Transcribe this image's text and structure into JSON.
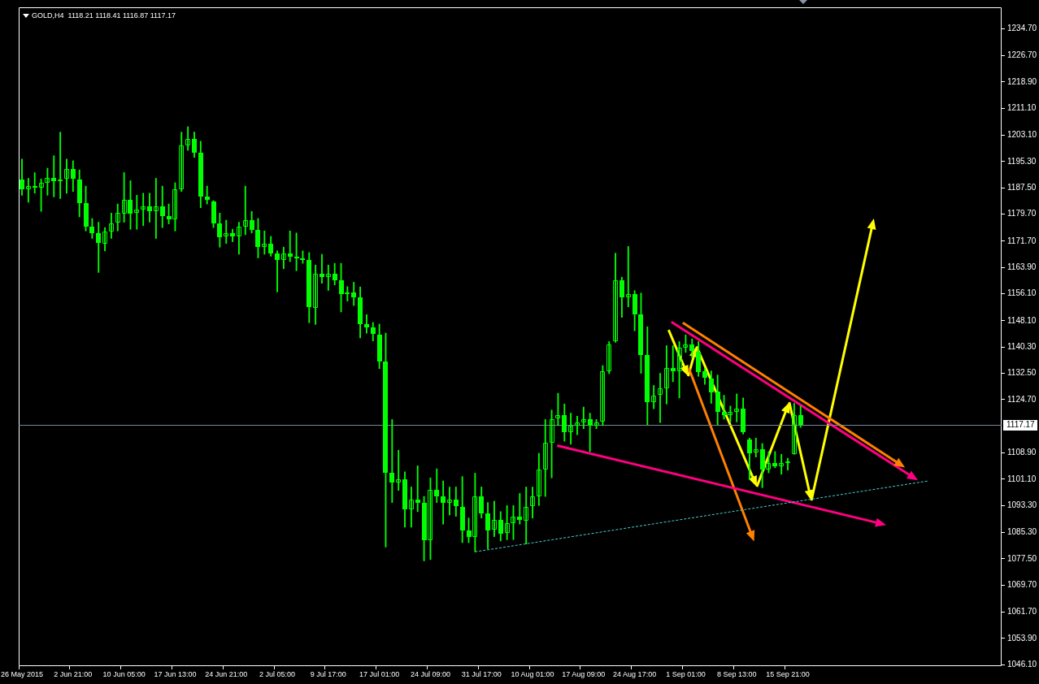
{
  "chart_data": {
    "type": "candlestick",
    "title": "GOLD,H4  1118.21 1118.41 1116.87 1117.17",
    "color": "#00ff00",
    "categories": [
      "26 May 2015",
      null,
      null,
      null,
      null,
      null,
      null,
      null,
      "2 Jun 21:00",
      null,
      null,
      null,
      null,
      null,
      null,
      null,
      "10 Jun 05:00",
      null,
      null,
      null,
      null,
      null,
      null,
      null,
      "17 Jun 13:00",
      null,
      null,
      null,
      null,
      null,
      null,
      null,
      "24 Jun 21:00",
      null,
      null,
      null,
      null,
      null,
      null,
      null,
      "2 Jul 05:00",
      null,
      null,
      null,
      null,
      null,
      null,
      null,
      "9 Jul 17:00",
      null,
      null,
      null,
      null,
      null,
      null,
      null,
      "17 Jul 01:00",
      null,
      null,
      null,
      null,
      null,
      null,
      null,
      "24 Jul 09:00",
      null,
      null,
      null,
      null,
      null,
      null,
      null,
      "31 Jul 17:00",
      null,
      null,
      null,
      null,
      null,
      null,
      null,
      "10 Aug 01:00",
      null,
      null,
      null,
      null,
      null,
      null,
      null,
      "17 Aug 09:00",
      null,
      null,
      null,
      null,
      null,
      null,
      null,
      "24 Aug 17:00",
      null,
      null,
      null,
      null,
      null,
      null,
      null,
      "1 Sep 01:00",
      null,
      null,
      null,
      null,
      null,
      null,
      null,
      "8 Sep 13:00",
      null,
      null,
      null,
      null,
      null,
      null,
      null,
      "15 Sep 21:00",
      null,
      null,
      null,
      null,
      null,
      null,
      null,
      null,
      null,
      null,
      null,
      null,
      null,
      null,
      null,
      null,
      null,
      null,
      null,
      null,
      null,
      null,
      null,
      null,
      null,
      null,
      null,
      null,
      null,
      null,
      null,
      null,
      null
    ],
    "ohlc": [
      [
        1190.0,
        1196.0,
        1185.3,
        1187.0
      ],
      [
        1187.0,
        1190.3,
        1183.2,
        1188.0
      ],
      [
        1188.0,
        1192.0,
        1185.9,
        1187.5
      ],
      [
        1187.5,
        1190.1,
        1180.5,
        1189.0
      ],
      [
        1189.0,
        1193.3,
        1185.3,
        1190.5
      ],
      [
        1190.5,
        1197.0,
        1184.8,
        1189.5
      ],
      [
        1189.5,
        1204.0,
        1184.3,
        1190.0
      ],
      [
        1190.0,
        1196.0,
        1185.9,
        1193.0
      ],
      [
        1193.0,
        1195.5,
        1186.4,
        1190.0
      ],
      [
        1190.0,
        1192.8,
        1178.9,
        1183.0
      ],
      [
        1183.0,
        1188.0,
        1174.7,
        1176.0
      ],
      [
        1176.0,
        1178.4,
        1172.5,
        1174.0
      ],
      [
        1174.0,
        1177.3,
        1162.4,
        1171.0
      ],
      [
        1171.0,
        1175.7,
        1168.8,
        1174.5
      ],
      [
        1174.5,
        1180.0,
        1172.5,
        1177.0
      ],
      [
        1177.0,
        1182.7,
        1174.7,
        1180.0
      ],
      [
        1180.0,
        1192.0,
        1177.3,
        1184.0
      ],
      [
        1184.0,
        1189.6,
        1175.2,
        1180.0
      ],
      [
        1180.0,
        1185.3,
        1175.2,
        1181.0
      ],
      [
        1181.0,
        1185.9,
        1176.3,
        1182.0
      ],
      [
        1182.0,
        1185.9,
        1177.3,
        1180.5
      ],
      [
        1180.5,
        1190.3,
        1172.5,
        1182.0
      ],
      [
        1182.0,
        1188.0,
        1175.7,
        1179.0
      ],
      [
        1179.0,
        1182.7,
        1176.8,
        1178.0
      ],
      [
        1178.0,
        1189.0,
        1174.7,
        1187.0
      ],
      [
        1187.0,
        1204.0,
        1186.4,
        1200.0
      ],
      [
        1200.0,
        1205.6,
        1198.6,
        1202.0
      ],
      [
        1202.0,
        1204.0,
        1196.5,
        1198.0
      ],
      [
        1198.0,
        1201.3,
        1181.6,
        1185.0
      ],
      [
        1185.0,
        1188.0,
        1182.7,
        1184.0
      ],
      [
        1183.5,
        1183.7,
        1175.7,
        1177.0
      ],
      [
        1177.0,
        1180.0,
        1169.9,
        1173.0
      ],
      [
        1173.0,
        1177.9,
        1171.0,
        1174.0
      ],
      [
        1174.0,
        1175.2,
        1171.5,
        1173.0
      ],
      [
        1173.0,
        1177.3,
        1167.8,
        1176.0
      ],
      [
        1176.0,
        1188.0,
        1173.6,
        1178.0
      ],
      [
        1178.0,
        1180.5,
        1174.1,
        1175.0
      ],
      [
        1175.0,
        1178.4,
        1166.7,
        1170.0
      ],
      [
        1170.0,
        1174.7,
        1167.8,
        1171.0
      ],
      [
        1171.0,
        1173.1,
        1167.2,
        1168.0
      ],
      [
        1168.0,
        1168.8,
        1156.6,
        1166.0
      ],
      [
        1166.0,
        1169.9,
        1163.5,
        1168.0
      ],
      [
        1168.0,
        1174.7,
        1165.6,
        1167.0
      ],
      [
        1167.0,
        1174.1,
        1162.9,
        1166.5
      ],
      [
        1166.5,
        1168.8,
        1165.1,
        1166.0
      ],
      [
        1166.0,
        1168.3,
        1147.5,
        1152.0
      ],
      [
        1152.0,
        1164.6,
        1147.0,
        1162.0
      ],
      [
        1162.0,
        1167.8,
        1159.2,
        1161.0
      ],
      [
        1161.0,
        1164.6,
        1157.1,
        1162.0
      ],
      [
        1162.0,
        1165.1,
        1158.7,
        1160.0
      ],
      [
        1160.0,
        1165.1,
        1150.7,
        1156.0
      ],
      [
        1156.0,
        1158.2,
        1153.9,
        1156.5
      ],
      [
        1156.5,
        1159.5,
        1152.6,
        1155.0
      ],
      [
        1155.0,
        1158.1,
        1143.0,
        1147.0
      ],
      [
        1147.0,
        1149.9,
        1144.4,
        1146.0
      ],
      [
        1146.0,
        1147.6,
        1142.1,
        1144.0
      ],
      [
        1144.0,
        1147.1,
        1133.9,
        1136.0
      ],
      [
        1136.0,
        1144.4,
        1081.0,
        1103.0
      ],
      [
        1103.0,
        1118.8,
        1094.2,
        1100.0
      ],
      [
        1100.0,
        1109.7,
        1097.8,
        1101.0
      ],
      [
        1101.0,
        1103.3,
        1086.9,
        1092.0
      ],
      [
        1092.0,
        1098.8,
        1086.9,
        1095.0
      ],
      [
        1095.0,
        1105.1,
        1091.5,
        1094.0
      ],
      [
        1094.0,
        1096.0,
        1076.9,
        1083.0
      ],
      [
        1083.0,
        1101.5,
        1077.3,
        1098.0
      ],
      [
        1098.0,
        1104.2,
        1094.2,
        1096.0
      ],
      [
        1096.0,
        1100.6,
        1087.8,
        1094.0
      ],
      [
        1094.0,
        1098.8,
        1090.5,
        1095.0
      ],
      [
        1095.0,
        1098.8,
        1090.1,
        1093.0
      ],
      [
        1093.0,
        1101.9,
        1082.3,
        1086.0
      ],
      [
        1086.0,
        1089.6,
        1082.3,
        1084.0
      ],
      [
        1084.0,
        1102.9,
        1079.6,
        1096.0
      ],
      [
        1096.0,
        1098.8,
        1089.6,
        1091.0
      ],
      [
        1091.0,
        1094.2,
        1080.5,
        1086.0
      ],
      [
        1086.0,
        1094.6,
        1084.1,
        1089.0
      ],
      [
        1089.0,
        1091.5,
        1082.8,
        1085.0
      ],
      [
        1085.0,
        1093.3,
        1083.2,
        1088.0
      ],
      [
        1088.0,
        1093.3,
        1083.2,
        1090.0
      ],
      [
        1090.0,
        1096.9,
        1087.8,
        1089.0
      ],
      [
        1089.0,
        1098.8,
        1081.9,
        1093.0
      ],
      [
        1093.0,
        1098.8,
        1089.6,
        1096.0
      ],
      [
        1096.0,
        1108.8,
        1093.3,
        1104.0
      ],
      [
        1104.0,
        1118.8,
        1096.0,
        1112.0
      ],
      [
        1112.0,
        1121.6,
        1101.5,
        1119.0
      ],
      [
        1119.0,
        1126.6,
        1117.0,
        1120.0
      ],
      [
        1120.0,
        1123.4,
        1112.4,
        1115.0
      ],
      [
        1115.0,
        1120.7,
        1111.5,
        1117.0
      ],
      [
        1117.0,
        1119.8,
        1114.3,
        1118.0
      ],
      [
        1118.0,
        1122.5,
        1116.1,
        1119.0
      ],
      [
        1119.0,
        1120.7,
        1109.3,
        1117.0
      ],
      [
        1117.0,
        1118.8,
        1116.1,
        1118.0
      ],
      [
        1118.0,
        1134.8,
        1117.0,
        1133.0
      ],
      [
        1133.0,
        1141.9,
        1132.4,
        1141.0
      ],
      [
        1141.9,
        1168.1,
        1141.7,
        1160.0
      ],
      [
        1160.0,
        1161.0,
        1149.1,
        1155.0
      ],
      [
        1155.0,
        1170.1,
        1152.2,
        1156.0
      ],
      [
        1156.0,
        1157.0,
        1145.1,
        1150.0
      ],
      [
        1150.0,
        1156.3,
        1132.5,
        1138.0
      ],
      [
        1138.0,
        1146.3,
        1117.3,
        1124.0
      ],
      [
        1124.0,
        1128.9,
        1122.0,
        1126.0
      ],
      [
        1126.0,
        1132.5,
        1117.9,
        1128.0
      ],
      [
        1128.0,
        1140.7,
        1123.4,
        1134.0
      ],
      [
        1134.0,
        1140.7,
        1130.0,
        1133.0
      ],
      [
        1133.0,
        1141.9,
        1125.2,
        1140.0
      ],
      [
        1140.0,
        1143.9,
        1138.7,
        1141.0
      ],
      [
        1141.0,
        1142.7,
        1137.1,
        1139.0
      ],
      [
        1139.0,
        1141.9,
        1131.6,
        1133.0
      ],
      [
        1133.0,
        1134.0,
        1129.2,
        1131.0
      ],
      [
        1131.0,
        1133.2,
        1123.6,
        1127.0
      ],
      [
        1127.0,
        1132.0,
        1117.3,
        1121.0
      ],
      [
        1121.0,
        1126.0,
        1118.9,
        1120.0
      ],
      [
        1120.0,
        1122.8,
        1118.1,
        1121.0
      ],
      [
        1121.0,
        1126.4,
        1118.1,
        1122.0
      ],
      [
        1122.0,
        1125.2,
        1114.5,
        1115.0
      ],
      [
        1113.0,
        1113.3,
        1101.0,
        1109.0
      ],
      [
        1109.0,
        1113.3,
        1107.7,
        1110.0
      ],
      [
        1110.0,
        1111.7,
        1098.6,
        1104.0
      ],
      [
        1104.0,
        1109.3,
        1103.0,
        1106.0
      ],
      [
        1106.0,
        1109.3,
        1104.5,
        1105.0
      ],
      [
        1105.0,
        1108.5,
        1102.6,
        1106.0
      ],
      [
        1106.0,
        1107.3,
        1103.8,
        1106.5
      ],
      [
        1108.5,
        1123.6,
        1108.5,
        1120.0
      ],
      [
        1120.0,
        1122.8,
        1116.5,
        1117.17
      ],
      null,
      null,
      null,
      null,
      null,
      null,
      null,
      null,
      null,
      null,
      null,
      null,
      null,
      null,
      null,
      null,
      null,
      null,
      null,
      null,
      null,
      null,
      null,
      null,
      null,
      null,
      null,
      null,
      null,
      null,
      null
    ],
    "ylim": [
      1045.7,
      1241.0
    ],
    "yticks": [
      {
        "value": 1234.7,
        "label": "1234.70"
      },
      {
        "value": 1226.7,
        "label": "1226.70"
      },
      {
        "value": 1218.9,
        "label": "1218.90"
      },
      {
        "value": 1211.1,
        "label": "1211.10"
      },
      {
        "value": 1203.1,
        "label": "1203.10"
      },
      {
        "value": 1195.3,
        "label": "1195.30"
      },
      {
        "value": 1187.5,
        "label": "1187.50"
      },
      {
        "value": 1179.7,
        "label": "1179.70"
      },
      {
        "value": 1171.7,
        "label": "1171.70"
      },
      {
        "value": 1163.9,
        "label": "1163.90"
      },
      {
        "value": 1156.1,
        "label": "1156.10"
      },
      {
        "value": 1148.1,
        "label": "1148.10"
      },
      {
        "value": 1140.3,
        "label": "1140.30"
      },
      {
        "value": 1132.5,
        "label": "1132.50"
      },
      {
        "value": 1124.7,
        "label": "1124.70"
      },
      {
        "value": 1108.9,
        "label": "1108.90"
      },
      {
        "value": 1101.1,
        "label": "1101.10"
      },
      {
        "value": 1093.3,
        "label": "1093.30"
      },
      {
        "value": 1085.3,
        "label": "1085.30"
      },
      {
        "value": 1077.5,
        "label": "1077.50"
      },
      {
        "value": 1069.7,
        "label": "1069.70"
      },
      {
        "value": 1061.7,
        "label": "1061.70"
      },
      {
        "value": 1053.9,
        "label": "1053.90"
      },
      {
        "value": 1046.1,
        "label": "1046.10"
      }
    ],
    "ref_lines": [
      {
        "axis": "y",
        "value": 1117.17,
        "label": "1117.17",
        "color": "#778899"
      }
    ],
    "series": [
      {
        "type": "line",
        "color": "#48d1cc",
        "line_style": "dotted",
        "values": [
          null,
          null,
          null,
          null,
          null,
          null,
          null,
          null,
          null,
          null,
          null,
          null,
          null,
          null,
          null,
          null,
          null,
          null,
          null,
          null,
          null,
          null,
          null,
          null,
          null,
          null,
          null,
          null,
          null,
          null,
          null,
          null,
          null,
          null,
          null,
          null,
          null,
          null,
          null,
          null,
          null,
          null,
          null,
          null,
          null,
          null,
          null,
          null,
          null,
          null,
          null,
          null,
          null,
          null,
          null,
          null,
          null,
          null,
          null,
          null,
          null,
          null,
          null,
          null,
          null,
          null,
          null,
          null,
          null,
          null,
          null,
          1079.6,
          null,
          null,
          null,
          null,
          null,
          null,
          null,
          null,
          null,
          null,
          null,
          null,
          null,
          null,
          null,
          null,
          null,
          null,
          null,
          null,
          null,
          null,
          null,
          null,
          null,
          null,
          null,
          null,
          null,
          null,
          null,
          null,
          null,
          null,
          null,
          null,
          null,
          null,
          null,
          null,
          null,
          null,
          null,
          null,
          null,
          null,
          null,
          null,
          null,
          null,
          null,
          null,
          null,
          null,
          null,
          null,
          null,
          null,
          null,
          null,
          null,
          null,
          null,
          null,
          null,
          null,
          null,
          null,
          null,
          null,
          1100.6,
          null,
          null,
          null,
          null,
          null,
          null,
          null,
          null,
          null,
          null,
          null
        ]
      }
    ]
  }
}
